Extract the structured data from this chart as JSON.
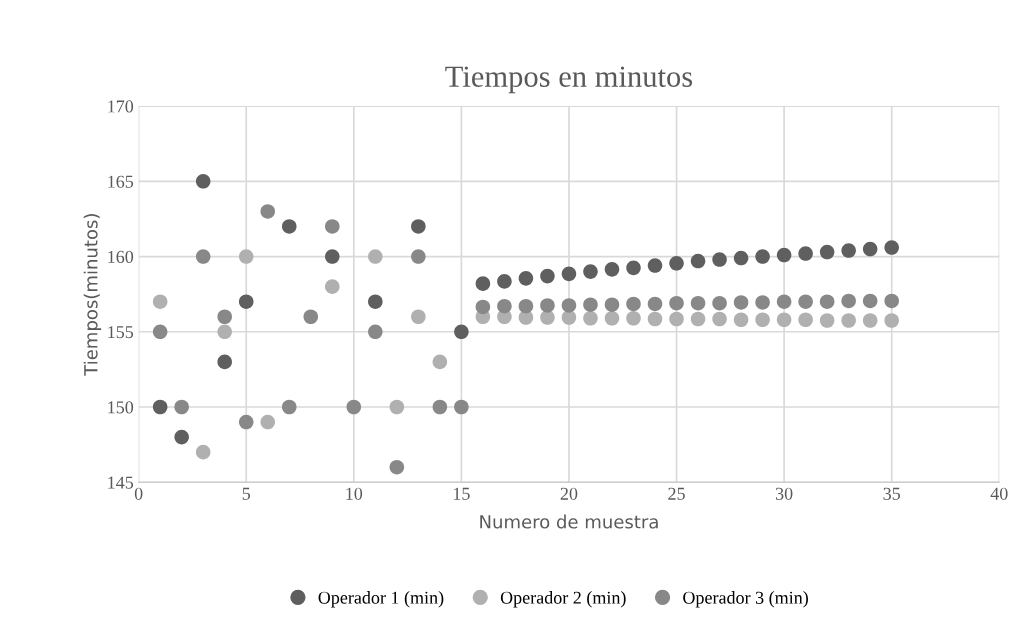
{
  "chart_data": {
    "type": "scatter",
    "title": "Tiempos en minutos",
    "xlabel": "Numero de muestra",
    "ylabel": "Tiempos(minutos)",
    "x": [
      1,
      2,
      3,
      4,
      5,
      6,
      7,
      8,
      9,
      10,
      11,
      12,
      13,
      14,
      15,
      16,
      17,
      18,
      19,
      20,
      21,
      22,
      23,
      24,
      25,
      26,
      27,
      28,
      29,
      30,
      31,
      32,
      33,
      34,
      35
    ],
    "series": [
      {
        "name": "Operador 1 (min)",
        "color": "#5f5f5f",
        "values": [
          150,
          148,
          165,
          153,
          157,
          null,
          162,
          null,
          160,
          null,
          157,
          null,
          162,
          null,
          155,
          158.2,
          158.35,
          158.55,
          158.7,
          158.85,
          159.0,
          159.15,
          159.25,
          159.4,
          159.55,
          159.7,
          159.8,
          159.9,
          160.0,
          160.1,
          160.2,
          160.3,
          160.4,
          160.5,
          160.6
        ]
      },
      {
        "name": "Operador 2 (min)",
        "color": "#b0b0b0",
        "values": [
          157,
          null,
          147,
          155,
          160,
          149,
          null,
          null,
          158,
          null,
          160,
          150,
          156,
          153,
          null,
          156.0,
          156.0,
          155.95,
          155.95,
          155.95,
          155.9,
          155.9,
          155.9,
          155.85,
          155.85,
          155.85,
          155.85,
          155.8,
          155.8,
          155.8,
          155.8,
          155.75,
          155.75,
          155.75,
          155.75
        ]
      },
      {
        "name": "Operador 3 (min)",
        "color": "#888888",
        "values": [
          155,
          150,
          160,
          156,
          149,
          163,
          150,
          156,
          162,
          150,
          155,
          146,
          160,
          150,
          150,
          156.65,
          156.7,
          156.7,
          156.75,
          156.75,
          156.8,
          156.8,
          156.85,
          156.85,
          156.9,
          156.9,
          156.9,
          156.95,
          156.95,
          157.0,
          157.0,
          157.0,
          157.05,
          157.05,
          157.05
        ]
      }
    ],
    "xlim": [
      0,
      40
    ],
    "xticks": [
      0,
      5,
      10,
      15,
      20,
      25,
      30,
      35,
      40
    ],
    "ylim": [
      145,
      170
    ],
    "yticks": [
      145,
      150,
      155,
      160,
      165,
      170
    ],
    "grid": true,
    "legend": "bottom",
    "marker": "circle"
  }
}
